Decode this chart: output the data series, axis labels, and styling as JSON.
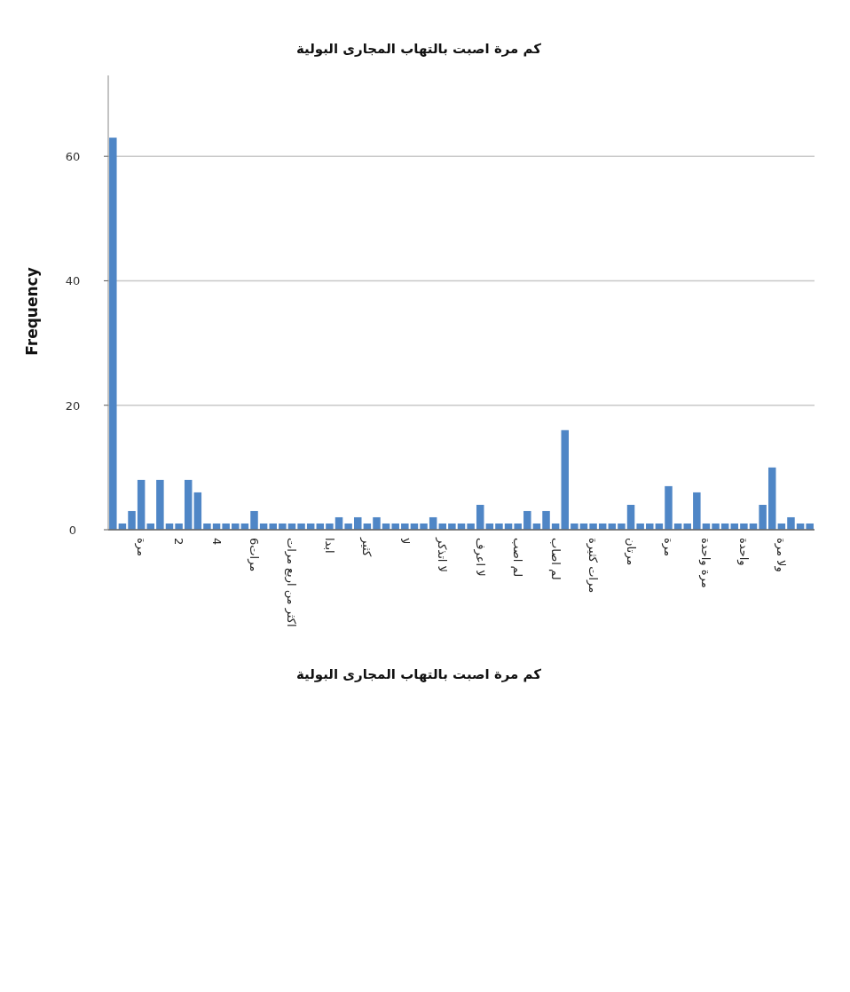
{
  "chart_data": {
    "type": "bar",
    "title": "كم مرة اصبت بالتهاب المجارى البولية",
    "xlabel": "كم مرة اصبت بالتهاب المجارى البولية",
    "ylabel": "Frequency",
    "categories": [
      null,
      null,
      null,
      "مرة",
      null,
      null,
      null,
      "2",
      null,
      null,
      null,
      "4",
      null,
      null,
      null,
      "6مرات",
      null,
      null,
      null,
      "اكثر من اربع مرات",
      null,
      null,
      null,
      "ابدا",
      null,
      null,
      null,
      "كثير",
      null,
      null,
      null,
      "لا",
      null,
      null,
      null,
      "لا اتذكر",
      null,
      null,
      null,
      "لا اعرف",
      null,
      null,
      null,
      "لم اصب",
      null,
      null,
      null,
      "لم اصاب",
      null,
      null,
      null,
      "مرات كثيرة",
      null,
      null,
      null,
      "مرتان",
      null,
      null,
      null,
      "مرة",
      null,
      null,
      null,
      "مرة واحدة",
      null,
      null,
      null,
      "واحدة",
      null,
      null,
      null,
      "ولا مرة",
      null,
      null,
      null
    ],
    "values": [
      63,
      1,
      3,
      8,
      1,
      8,
      1,
      1,
      8,
      6,
      1,
      1,
      1,
      1,
      1,
      3,
      1,
      1,
      1,
      1,
      1,
      1,
      1,
      1,
      2,
      1,
      2,
      1,
      2,
      1,
      1,
      1,
      1,
      1,
      2,
      1,
      1,
      1,
      1,
      4,
      1,
      1,
      1,
      1,
      3,
      1,
      3,
      1,
      16,
      1,
      1,
      1,
      1,
      1,
      1,
      4,
      1,
      1,
      1,
      7,
      1,
      1,
      6,
      1,
      1,
      1,
      1,
      1,
      1,
      4,
      10,
      1,
      2,
      1,
      1
    ],
    "color": "#4f86c6",
    "ylim": [
      0,
      73
    ],
    "yticks": [
      0,
      20,
      40,
      60
    ],
    "grid": "y"
  }
}
